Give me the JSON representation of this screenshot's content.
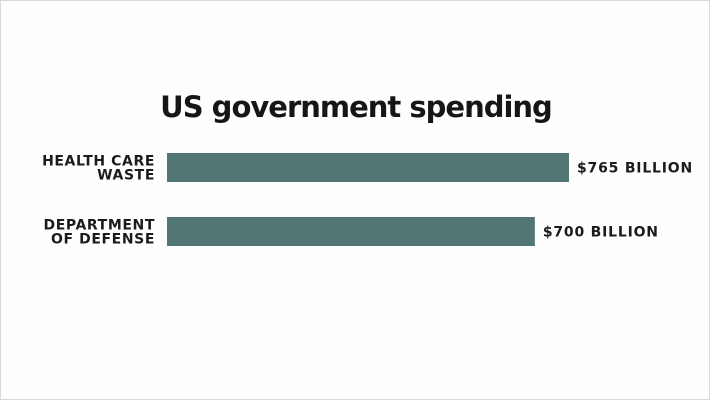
{
  "chart_data": {
    "type": "bar",
    "orientation": "horizontal",
    "title": "US government spending",
    "categories": [
      [
        "HEALTH CARE",
        "WASTE"
      ],
      [
        "DEPARTMENT",
        "OF DEFENSE"
      ]
    ],
    "values": [
      765,
      700
    ],
    "value_labels": [
      "$765 BILLION",
      "$700 BILLION"
    ],
    "unit": "billion USD",
    "xlim": [
      0,
      765
    ],
    "grid": false,
    "legend": "none",
    "colors": {
      "bar": "#527673",
      "text": "#1b1b1b",
      "background": "#ffffff"
    }
  }
}
